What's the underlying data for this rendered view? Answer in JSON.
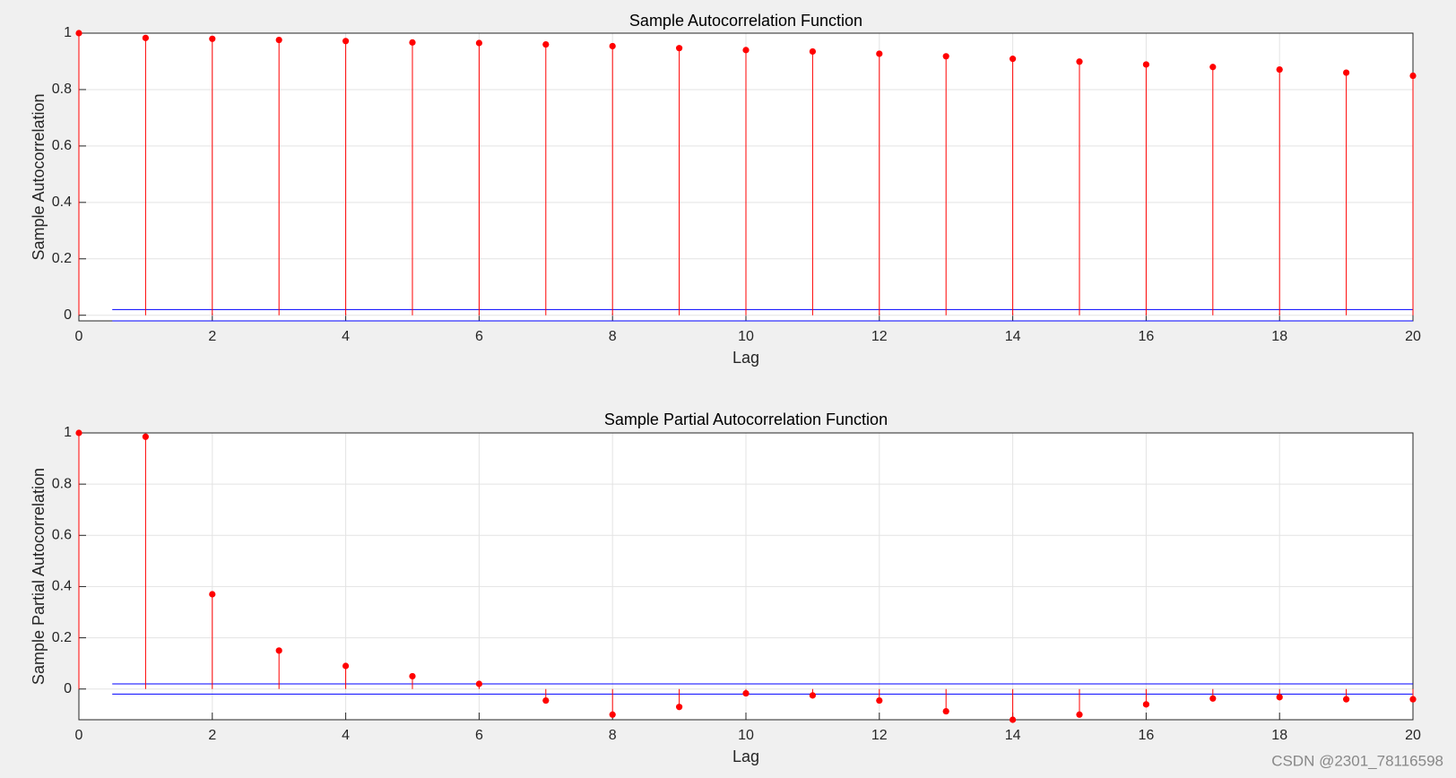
{
  "chart_data": [
    {
      "type": "stem",
      "title": "Sample Autocorrelation Function",
      "x_label": "Lag",
      "y_label": "Sample Autocorrelation",
      "x": [
        0,
        1,
        2,
        3,
        4,
        5,
        6,
        7,
        8,
        9,
        10,
        11,
        12,
        13,
        14,
        15,
        16,
        17,
        18,
        19,
        20
      ],
      "values": [
        1,
        0.983,
        0.98,
        0.976,
        0.972,
        0.967,
        0.965,
        0.96,
        0.954,
        0.947,
        0.94,
        0.935,
        0.927,
        0.918,
        0.909,
        0.899,
        0.889,
        0.88,
        0.871,
        0.86,
        0.849
      ],
      "color": "#ff0000",
      "bounds": [
        0.02,
        -0.02
      ],
      "bounds_color": "#0000ff",
      "xlim": [
        0,
        20
      ],
      "xticks": [
        0,
        2,
        4,
        6,
        8,
        10,
        12,
        14,
        16,
        18,
        20
      ],
      "ylim": [
        -0.02,
        1
      ],
      "yticks": [
        0,
        0.2,
        0.4,
        0.6,
        0.8,
        1
      ],
      "grid": true
    },
    {
      "type": "stem",
      "title": "Sample Partial Autocorrelation Function",
      "x_label": "Lag",
      "y_label": "Sample Partial Autocorrelation",
      "x": [
        0,
        1,
        2,
        3,
        4,
        5,
        6,
        7,
        8,
        9,
        10,
        11,
        12,
        13,
        14,
        15,
        16,
        17,
        18,
        19,
        20
      ],
      "values": [
        1,
        0.985,
        0.37,
        0.15,
        0.09,
        0.05,
        0.02,
        -0.045,
        -0.1,
        -0.07,
        -0.017,
        -0.025,
        -0.045,
        -0.087,
        -0.12,
        -0.1,
        -0.06,
        -0.037,
        -0.032,
        -0.04,
        -0.04
      ],
      "color": "#ff0000",
      "bounds": [
        0.02,
        -0.02
      ],
      "bounds_color": "#0000ff",
      "xlim": [
        0,
        20
      ],
      "xticks": [
        0,
        2,
        4,
        6,
        8,
        10,
        12,
        14,
        16,
        18,
        20
      ],
      "ylim": [
        -0.12,
        1
      ],
      "yticks": [
        0,
        0.2,
        0.4,
        0.6,
        0.8,
        1
      ],
      "grid": true
    }
  ],
  "watermark": "CSDN @2301_78116598"
}
